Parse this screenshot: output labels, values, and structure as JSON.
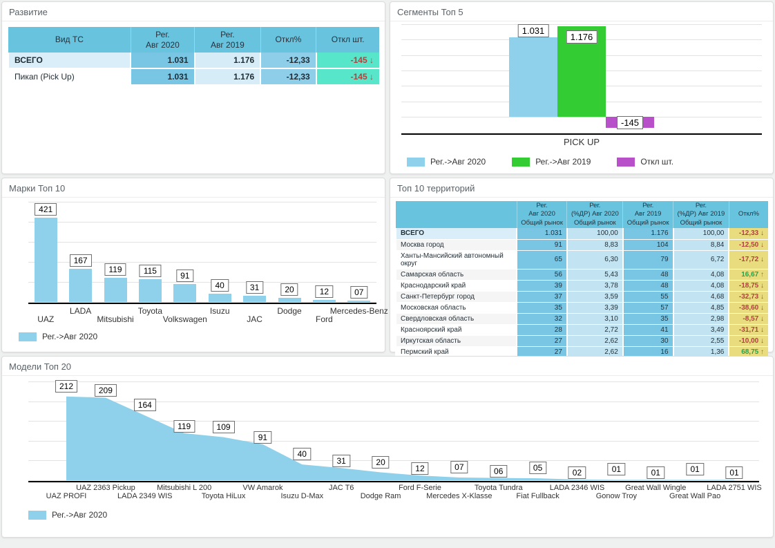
{
  "colors": {
    "bar_blue": "#8FD0EA",
    "bar_green": "#33CC33",
    "bar_purple": "#B750C9",
    "cell_teal": "#57E6C9",
    "cell_khaki": "#E9DC7F",
    "header_blue": "#68C3DF",
    "negative_text": "#B0413E",
    "positive_text": "#2F9E44"
  },
  "glyphs": {
    "arrow_down": "↓",
    "arrow_up": "↑"
  },
  "panels": {
    "development": {
      "title": "Развитие",
      "table": {
        "columns": [
          "Вид ТС",
          "Рег.\nАвг 2020",
          "Рег.\nАвг 2019",
          "Откл%",
          "Откл шт."
        ],
        "rows": [
          {
            "name": "ВСЕГО",
            "bold": true,
            "reg_2020": "1.031",
            "reg_2019": "1.176",
            "dev_pct": "-12,33",
            "dev_units": "-145",
            "trend": "down"
          },
          {
            "name": "Пикап (Pick Up)",
            "bold": false,
            "reg_2020": "1.031",
            "reg_2019": "1.176",
            "dev_pct": "-12,33",
            "dev_units": "-145",
            "trend": "down"
          }
        ]
      }
    },
    "segments": {
      "title": "Сегменты Топ 5"
    },
    "brands": {
      "title": "Марки Топ 10"
    },
    "territories": {
      "title": "Топ 10 территорий",
      "table": {
        "columns": [
          "",
          "Рег.\nАвг 2020\nОбщий рынок",
          "Рег.\n(%ДР) Авг 2020\nОбщий рынок",
          "Рег.\nАвг 2019\nОбщий рынок",
          "Рег.\n(%ДР) Авг 2019\nОбщий рынок",
          "Откл%"
        ],
        "rows": [
          {
            "name": "ВСЕГО",
            "bold": true,
            "reg_2020": "1.031",
            "share_2020": "100,00",
            "reg_2019": "1.176",
            "share_2019": "100,00",
            "dev_pct": "-12,33",
            "trend": "down"
          },
          {
            "name": "Москва город",
            "reg_2020": "91",
            "share_2020": "8,83",
            "reg_2019": "104",
            "share_2019": "8,84",
            "dev_pct": "-12,50",
            "trend": "down"
          },
          {
            "name": "Ханты-Мансийский автономный округ",
            "reg_2020": "65",
            "share_2020": "6,30",
            "reg_2019": "79",
            "share_2019": "6,72",
            "dev_pct": "-17,72",
            "trend": "down"
          },
          {
            "name": "Самарская область",
            "reg_2020": "56",
            "share_2020": "5,43",
            "reg_2019": "48",
            "share_2019": "4,08",
            "dev_pct": "16,67",
            "trend": "up"
          },
          {
            "name": "Краснодарский край",
            "reg_2020": "39",
            "share_2020": "3,78",
            "reg_2019": "48",
            "share_2019": "4,08",
            "dev_pct": "-18,75",
            "trend": "down"
          },
          {
            "name": "Санкт-Петербург город",
            "reg_2020": "37",
            "share_2020": "3,59",
            "reg_2019": "55",
            "share_2019": "4,68",
            "dev_pct": "-32,73",
            "trend": "down"
          },
          {
            "name": "Московская область",
            "reg_2020": "35",
            "share_2020": "3,39",
            "reg_2019": "57",
            "share_2019": "4,85",
            "dev_pct": "-38,60",
            "trend": "down"
          },
          {
            "name": "Свердловская область",
            "reg_2020": "32",
            "share_2020": "3,10",
            "reg_2019": "35",
            "share_2019": "2,98",
            "dev_pct": "-8,57",
            "trend": "down"
          },
          {
            "name": "Красноярский край",
            "reg_2020": "28",
            "share_2020": "2,72",
            "reg_2019": "41",
            "share_2019": "3,49",
            "dev_pct": "-31,71",
            "trend": "down"
          },
          {
            "name": "Иркутская область",
            "reg_2020": "27",
            "share_2020": "2,62",
            "reg_2019": "30",
            "share_2019": "2,55",
            "dev_pct": "-10,00",
            "trend": "down"
          },
          {
            "name": "Пермский край",
            "reg_2020": "27",
            "share_2020": "2,62",
            "reg_2019": "16",
            "share_2019": "1,36",
            "dev_pct": "68,75",
            "trend": "up"
          }
        ]
      }
    },
    "models": {
      "title": "Модели Топ 20"
    }
  },
  "chart_data": [
    {
      "id": "segments",
      "type": "bar",
      "title": "Сегменты Топ 5",
      "categories": [
        "PICK UP"
      ],
      "series": [
        {
          "name": "Рег.->Авг 2020",
          "color": "#8FD0EA",
          "values": [
            1031
          ],
          "labels": [
            "1.031"
          ]
        },
        {
          "name": "Рег.->Авг 2019",
          "color": "#33CC33",
          "values": [
            1176
          ],
          "labels": [
            "1.176"
          ]
        },
        {
          "name": "Откл шт.",
          "color": "#B750C9",
          "values": [
            -145
          ],
          "labels": [
            "-145"
          ]
        }
      ],
      "ylim": [
        -200,
        1200
      ],
      "grid_step": 200,
      "grid": true,
      "legend_position": "bottom"
    },
    {
      "id": "brands",
      "type": "bar",
      "title": "Марки Топ 10",
      "series_name": "Рег.->Авг 2020",
      "color": "#8FD0EA",
      "categories": [
        "UAZ",
        "LADA",
        "Mitsubishi",
        "Toyota",
        "Volkswagen",
        "Isuzu",
        "JAC",
        "Dodge",
        "Ford",
        "Mercedes-Benz"
      ],
      "values": [
        421,
        167,
        119,
        115,
        91,
        40,
        31,
        20,
        12,
        7
      ],
      "labels": [
        "421",
        "167",
        "119",
        "115",
        "91",
        "40",
        "31",
        "20",
        "12",
        "07"
      ],
      "ylim": [
        0,
        500
      ],
      "grid_step": 100,
      "grid": true,
      "legend_position": "bottom-left"
    },
    {
      "id": "models",
      "type": "area",
      "title": "Модели Топ 20",
      "series_name": "Рег.->Авг 2020",
      "color": "#8FD0EA",
      "categories": [
        "UAZ PROFI",
        "UAZ 2363 Pickup",
        "LADA 2349 WIS",
        "Mitsubishi L 200",
        "Toyota HiLux",
        "VW Amarok",
        "Isuzu D-Max",
        "JAC T6",
        "Dodge Ram",
        "Ford F-Serie",
        "Mercedes X-Klasse",
        "Toyota Tundra",
        "Fiat Fullback",
        "LADA 2346 WIS",
        "Gonow Troy",
        "Great Wall Wingle",
        "Great Wall Pao",
        "LADA 2751 WIS"
      ],
      "values": [
        212,
        209,
        164,
        119,
        109,
        91,
        40,
        31,
        20,
        12,
        7,
        6,
        5,
        2,
        1,
        1,
        1,
        1
      ],
      "labels": [
        "212",
        "209",
        "164",
        "119",
        "109",
        "91",
        "40",
        "31",
        "20",
        "12",
        "07",
        "06",
        "05",
        "02",
        "01",
        "01",
        "01",
        "01"
      ],
      "ylim": [
        0,
        250
      ],
      "grid_step": 50,
      "grid": true,
      "legend_position": "bottom-left"
    }
  ]
}
